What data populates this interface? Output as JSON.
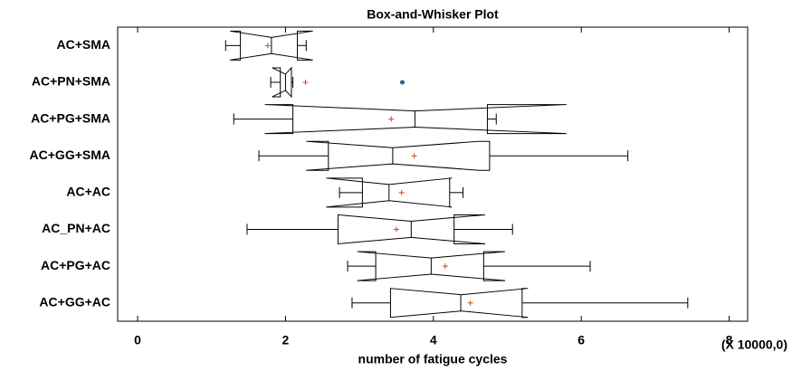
{
  "chart_data": {
    "type": "boxplot",
    "title": "Box-and-Whisker Plot",
    "x_label": "number of fatigue cycles",
    "x_scale_note": "(X 10000,0)",
    "xlim": [
      -0.27,
      8.25
    ],
    "xticks": [
      0,
      2,
      4,
      6,
      8
    ],
    "box_color": "#000000",
    "mean_color": "#c0501a",
    "outlier_color": "#1f6f7a",
    "categories": [
      "AC+SMA",
      "AC+PN+SMA",
      "AC+PG+SMA",
      "AC+GG+SMA",
      "AC+AC",
      "AC_PN+AC",
      "AC+PG+AC",
      "AC+GG+AC"
    ],
    "whisker_low": [
      1.19,
      1.8,
      1.3,
      1.64,
      2.73,
      1.48,
      2.84,
      2.9
    ],
    "q1": [
      1.39,
      1.93,
      2.1,
      2.58,
      3.04,
      2.71,
      3.22,
      3.42
    ],
    "notch_low": [
      1.25,
      1.82,
      1.72,
      2.28,
      2.55,
      2.71,
      2.97,
      3.42
    ],
    "median": [
      1.81,
      2.0,
      3.75,
      3.45,
      3.4,
      3.7,
      3.97,
      4.37
    ],
    "notch_high": [
      2.37,
      2.08,
      5.8,
      4.62,
      4.25,
      4.7,
      4.97,
      5.28
    ],
    "q3": [
      2.16,
      2.08,
      4.73,
      4.76,
      4.22,
      4.28,
      4.68,
      5.2
    ],
    "whisker_high": [
      2.28,
      2.1,
      4.85,
      6.63,
      4.4,
      5.07,
      6.12,
      7.44
    ],
    "mean": [
      1.76,
      2.27,
      3.43,
      3.74,
      3.57,
      3.5,
      4.16,
      4.5
    ],
    "outliers": [
      [],
      [
        3.58
      ],
      [],
      [],
      [],
      [],
      [],
      []
    ]
  }
}
